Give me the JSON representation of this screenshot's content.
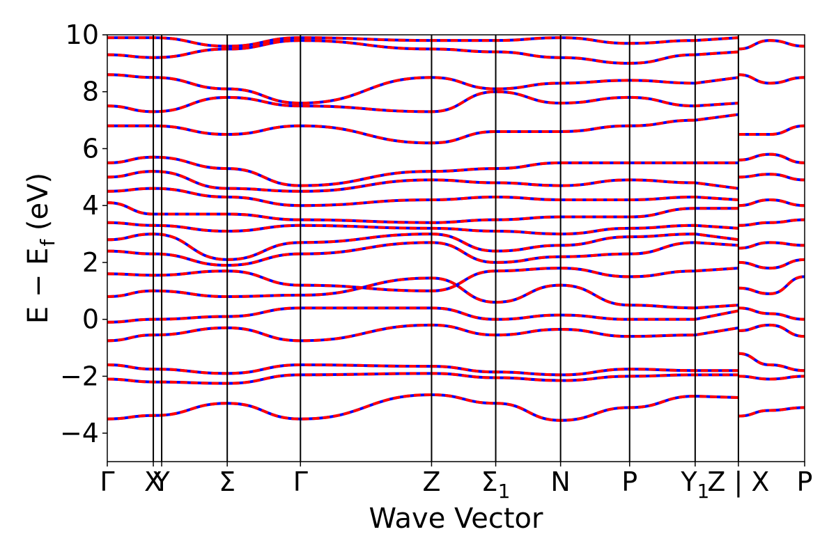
{
  "chart_data": {
    "type": "line",
    "title": "",
    "xlabel": "Wave Vector",
    "ylabel": "E − E_f (eV)",
    "ylabel_parts": {
      "main": "E − E",
      "sub": "f",
      "unit": " (eV)"
    },
    "ylim": [
      -5,
      10
    ],
    "yticks": [
      -4,
      -2,
      0,
      2,
      4,
      6,
      8,
      10
    ],
    "ytick_labels": [
      "−4",
      "−2",
      "0",
      "2",
      "4",
      "6",
      "8",
      "10"
    ],
    "xlim": [
      0,
      1
    ],
    "kpoints": [
      {
        "label": "Γ",
        "x": 0.0
      },
      {
        "label": "X",
        "x": 0.066
      },
      {
        "label": "Y",
        "x": 0.078
      },
      {
        "label": "Σ",
        "x": 0.172
      },
      {
        "label": "Γ",
        "x": 0.277
      },
      {
        "label": "Z",
        "x": 0.465
      },
      {
        "label": "Σ",
        "sub": "1",
        "x": 0.557
      },
      {
        "label": "N",
        "x": 0.65
      },
      {
        "label": "P",
        "x": 0.749
      },
      {
        "label": "Y",
        "sub": "1",
        "x": 0.843
      },
      {
        "label": "Z | X",
        "x": 0.905
      },
      {
        "label": "P",
        "x": 1.0
      }
    ],
    "grid": false,
    "legend": "none",
    "line_colors": {
      "series_a": "#ff0000",
      "series_b": "#0000ff"
    },
    "series": [
      {
        "values": [
          [
            0.0,
            -3.5
          ],
          [
            0.066,
            -3.38
          ],
          [
            0.172,
            -2.95
          ],
          [
            0.277,
            -3.5
          ],
          [
            0.465,
            -2.65
          ],
          [
            0.557,
            -2.95
          ],
          [
            0.65,
            -3.55
          ],
          [
            0.749,
            -3.1
          ],
          [
            0.843,
            -2.7
          ],
          [
            0.905,
            -2.75
          ]
        ]
      },
      {
        "values": [
          [
            0.0,
            -2.1
          ],
          [
            0.066,
            -2.2
          ],
          [
            0.172,
            -2.25
          ],
          [
            0.277,
            -1.95
          ],
          [
            0.465,
            -1.9
          ],
          [
            0.557,
            -2.05
          ],
          [
            0.65,
            -2.15
          ],
          [
            0.749,
            -2.0
          ],
          [
            0.843,
            -1.95
          ],
          [
            0.905,
            -1.95
          ]
        ]
      },
      {
        "values": [
          [
            0.0,
            -1.6
          ],
          [
            0.066,
            -1.75
          ],
          [
            0.172,
            -1.9
          ],
          [
            0.277,
            -1.6
          ],
          [
            0.465,
            -1.65
          ],
          [
            0.557,
            -1.85
          ],
          [
            0.65,
            -1.95
          ],
          [
            0.749,
            -1.75
          ],
          [
            0.843,
            -1.8
          ],
          [
            0.905,
            -1.8
          ]
        ]
      },
      {
        "values": [
          [
            0.0,
            -0.75
          ],
          [
            0.066,
            -0.55
          ],
          [
            0.172,
            -0.3
          ],
          [
            0.277,
            -0.75
          ],
          [
            0.465,
            -0.2
          ],
          [
            0.557,
            -0.55
          ],
          [
            0.65,
            -0.35
          ],
          [
            0.749,
            -0.6
          ],
          [
            0.843,
            -0.55
          ],
          [
            0.905,
            -0.3
          ]
        ]
      },
      {
        "values": [
          [
            0.0,
            -0.1
          ],
          [
            0.066,
            0.0
          ],
          [
            0.172,
            0.1
          ],
          [
            0.277,
            0.4
          ],
          [
            0.465,
            0.4
          ],
          [
            0.557,
            0.0
          ],
          [
            0.65,
            0.15
          ],
          [
            0.749,
            0.0
          ],
          [
            0.843,
            0.0
          ],
          [
            0.905,
            0.3
          ]
        ]
      },
      {
        "values": [
          [
            0.0,
            0.8
          ],
          [
            0.066,
            1.0
          ],
          [
            0.172,
            0.8
          ],
          [
            0.277,
            0.85
          ],
          [
            0.465,
            1.45
          ],
          [
            0.557,
            0.6
          ],
          [
            0.65,
            1.2
          ],
          [
            0.749,
            0.5
          ],
          [
            0.843,
            0.4
          ],
          [
            0.905,
            0.5
          ]
        ]
      },
      {
        "values": [
          [
            0.0,
            1.6
          ],
          [
            0.066,
            1.55
          ],
          [
            0.172,
            1.7
          ],
          [
            0.277,
            1.2
          ],
          [
            0.465,
            1.0
          ],
          [
            0.557,
            1.7
          ],
          [
            0.65,
            1.8
          ],
          [
            0.749,
            1.5
          ],
          [
            0.843,
            1.7
          ],
          [
            0.905,
            1.8
          ]
        ]
      },
      {
        "values": [
          [
            0.0,
            2.4
          ],
          [
            0.066,
            2.3
          ],
          [
            0.172,
            1.9
          ],
          [
            0.277,
            2.3
          ],
          [
            0.465,
            2.7
          ],
          [
            0.557,
            2.0
          ],
          [
            0.65,
            2.2
          ],
          [
            0.749,
            2.3
          ],
          [
            0.843,
            2.7
          ],
          [
            0.905,
            2.6
          ]
        ]
      },
      {
        "values": [
          [
            0.0,
            2.8
          ],
          [
            0.066,
            3.0
          ],
          [
            0.172,
            2.1
          ],
          [
            0.277,
            2.7
          ],
          [
            0.465,
            3.0
          ],
          [
            0.557,
            2.4
          ],
          [
            0.65,
            2.6
          ],
          [
            0.749,
            2.9
          ],
          [
            0.843,
            3.0
          ],
          [
            0.905,
            2.8
          ]
        ]
      },
      {
        "values": [
          [
            0.0,
            3.4
          ],
          [
            0.066,
            3.3
          ],
          [
            0.172,
            3.1
          ],
          [
            0.277,
            3.3
          ],
          [
            0.465,
            3.2
          ],
          [
            0.557,
            3.1
          ],
          [
            0.65,
            3.0
          ],
          [
            0.749,
            3.2
          ],
          [
            0.843,
            3.3
          ],
          [
            0.905,
            3.2
          ]
        ]
      },
      {
        "values": [
          [
            0.0,
            4.1
          ],
          [
            0.066,
            3.7
          ],
          [
            0.172,
            3.7
          ],
          [
            0.277,
            3.5
          ],
          [
            0.465,
            3.4
          ],
          [
            0.557,
            3.5
          ],
          [
            0.65,
            3.6
          ],
          [
            0.749,
            3.6
          ],
          [
            0.843,
            3.9
          ],
          [
            0.905,
            3.9
          ]
        ]
      },
      {
        "values": [
          [
            0.0,
            4.5
          ],
          [
            0.066,
            4.6
          ],
          [
            0.172,
            4.3
          ],
          [
            0.277,
            4.0
          ],
          [
            0.465,
            4.2
          ],
          [
            0.557,
            4.3
          ],
          [
            0.65,
            4.2
          ],
          [
            0.749,
            4.2
          ],
          [
            0.843,
            4.3
          ],
          [
            0.905,
            4.2
          ]
        ]
      },
      {
        "values": [
          [
            0.0,
            5.0
          ],
          [
            0.066,
            5.2
          ],
          [
            0.172,
            4.6
          ],
          [
            0.277,
            4.5
          ],
          [
            0.465,
            4.9
          ],
          [
            0.557,
            4.8
          ],
          [
            0.65,
            4.7
          ],
          [
            0.749,
            4.9
          ],
          [
            0.843,
            4.8
          ],
          [
            0.905,
            4.6
          ]
        ]
      },
      {
        "values": [
          [
            0.0,
            5.5
          ],
          [
            0.066,
            5.7
          ],
          [
            0.172,
            5.3
          ],
          [
            0.277,
            4.7
          ],
          [
            0.465,
            5.2
          ],
          [
            0.557,
            5.3
          ],
          [
            0.65,
            5.5
          ],
          [
            0.749,
            5.5
          ],
          [
            0.843,
            5.5
          ],
          [
            0.905,
            5.5
          ]
        ]
      },
      {
        "values": [
          [
            0.0,
            6.8
          ],
          [
            0.066,
            6.8
          ],
          [
            0.172,
            6.5
          ],
          [
            0.277,
            6.8
          ],
          [
            0.465,
            6.2
          ],
          [
            0.557,
            6.6
          ],
          [
            0.65,
            6.6
          ],
          [
            0.749,
            6.8
          ],
          [
            0.843,
            7.0
          ],
          [
            0.905,
            7.2
          ]
        ]
      },
      {
        "values": [
          [
            0.0,
            7.5
          ],
          [
            0.066,
            7.3
          ],
          [
            0.172,
            7.8
          ],
          [
            0.277,
            7.5
          ],
          [
            0.465,
            7.3
          ],
          [
            0.557,
            8.0
          ],
          [
            0.65,
            7.6
          ],
          [
            0.749,
            7.8
          ],
          [
            0.843,
            7.5
          ],
          [
            0.905,
            7.6
          ]
        ]
      },
      {
        "values": [
          [
            0.0,
            8.6
          ],
          [
            0.066,
            8.5
          ],
          [
            0.172,
            8.1
          ],
          [
            0.277,
            7.6
          ],
          [
            0.465,
            8.5
          ],
          [
            0.557,
            8.1
          ],
          [
            0.65,
            8.3
          ],
          [
            0.749,
            8.4
          ],
          [
            0.843,
            8.3
          ],
          [
            0.905,
            8.5
          ]
        ]
      },
      {
        "values": [
          [
            0.0,
            9.3
          ],
          [
            0.066,
            9.2
          ],
          [
            0.172,
            9.5
          ],
          [
            0.277,
            9.8
          ],
          [
            0.465,
            9.5
          ],
          [
            0.557,
            9.4
          ],
          [
            0.65,
            9.2
          ],
          [
            0.749,
            9.0
          ],
          [
            0.843,
            9.3
          ],
          [
            0.905,
            9.4
          ]
        ]
      },
      {
        "values": [
          [
            0.0,
            9.9
          ],
          [
            0.066,
            9.9
          ],
          [
            0.172,
            9.6
          ],
          [
            0.277,
            9.9
          ],
          [
            0.465,
            9.8
          ],
          [
            0.557,
            9.8
          ],
          [
            0.65,
            9.9
          ],
          [
            0.749,
            9.7
          ],
          [
            0.843,
            9.8
          ],
          [
            0.905,
            9.9
          ]
        ]
      },
      {
        "values": [
          [
            0.905,
            -3.4
          ],
          [
            0.95,
            -3.2
          ],
          [
            1.0,
            -3.1
          ]
        ]
      },
      {
        "values": [
          [
            0.905,
            -2.0
          ],
          [
            0.95,
            -2.1
          ],
          [
            1.0,
            -2.0
          ]
        ]
      },
      {
        "values": [
          [
            0.905,
            -1.2
          ],
          [
            0.95,
            -1.6
          ],
          [
            1.0,
            -1.8
          ]
        ]
      },
      {
        "values": [
          [
            0.905,
            -0.4
          ],
          [
            0.95,
            -0.2
          ],
          [
            1.0,
            -0.6
          ]
        ]
      },
      {
        "values": [
          [
            0.905,
            0.4
          ],
          [
            0.95,
            0.2
          ],
          [
            1.0,
            0.0
          ]
        ]
      },
      {
        "values": [
          [
            0.905,
            1.1
          ],
          [
            0.95,
            0.9
          ],
          [
            1.0,
            1.5
          ]
        ]
      },
      {
        "values": [
          [
            0.905,
            2.0
          ],
          [
            0.95,
            1.8
          ],
          [
            1.0,
            2.1
          ]
        ]
      },
      {
        "values": [
          [
            0.905,
            2.5
          ],
          [
            0.95,
            2.7
          ],
          [
            1.0,
            2.6
          ]
        ]
      },
      {
        "values": [
          [
            0.905,
            3.3
          ],
          [
            0.95,
            3.4
          ],
          [
            1.0,
            3.5
          ]
        ]
      },
      {
        "values": [
          [
            0.905,
            4.0
          ],
          [
            0.95,
            4.2
          ],
          [
            1.0,
            4.0
          ]
        ]
      },
      {
        "values": [
          [
            0.905,
            5.0
          ],
          [
            0.95,
            5.1
          ],
          [
            1.0,
            4.9
          ]
        ]
      },
      {
        "values": [
          [
            0.905,
            5.6
          ],
          [
            0.95,
            5.8
          ],
          [
            1.0,
            5.5
          ]
        ]
      },
      {
        "values": [
          [
            0.905,
            6.5
          ],
          [
            0.95,
            6.5
          ],
          [
            1.0,
            6.8
          ]
        ]
      },
      {
        "values": [
          [
            0.905,
            8.6
          ],
          [
            0.95,
            8.3
          ],
          [
            1.0,
            8.5
          ]
        ]
      },
      {
        "values": [
          [
            0.905,
            9.5
          ],
          [
            0.95,
            9.8
          ],
          [
            1.0,
            9.6
          ]
        ]
      }
    ]
  }
}
